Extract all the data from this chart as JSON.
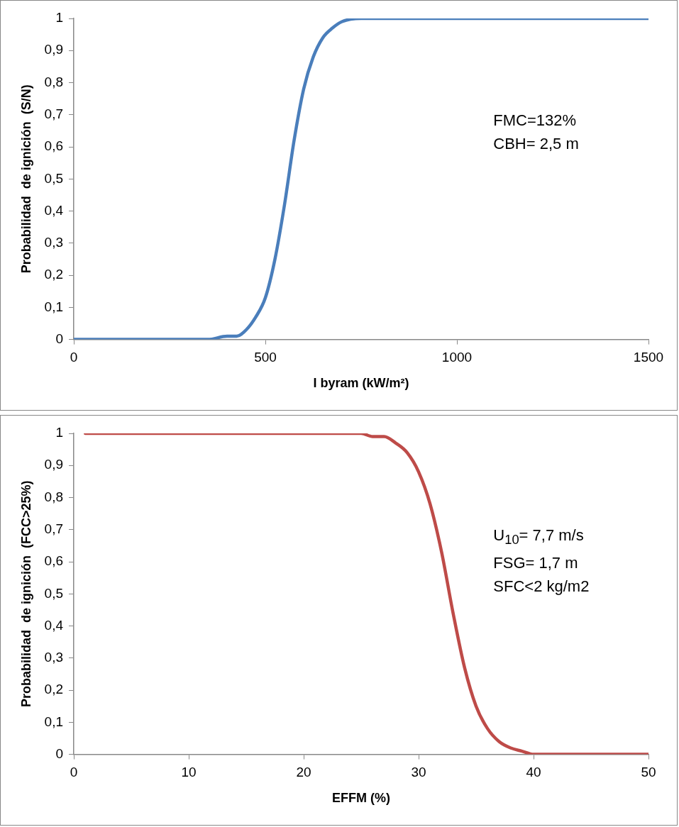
{
  "chart_data": [
    {
      "type": "line",
      "xlabel": "I byram (kW/m²)",
      "ylabel": "Probabilidad  de ignición  (S/N)",
      "annotations": [
        "FMC=132%",
        "CBH= 2,5 m"
      ],
      "x": [
        0,
        100,
        200,
        250,
        300,
        350,
        400,
        425,
        450,
        475,
        500,
        525,
        550,
        575,
        600,
        625,
        650,
        675,
        700,
        750,
        800,
        900,
        1000,
        1200,
        1500
      ],
      "series": [
        {
          "color": "#4a7ebb",
          "values": [
            0,
            0,
            0,
            0,
            0,
            0,
            0.01,
            0.01,
            0.03,
            0.07,
            0.13,
            0.25,
            0.42,
            0.62,
            0.78,
            0.88,
            0.94,
            0.97,
            0.99,
            1,
            1,
            1,
            1,
            1,
            1
          ]
        }
      ],
      "xlim": [
        0,
        1500
      ],
      "xticks": [
        0,
        500,
        1000,
        1500
      ],
      "ylim": [
        0,
        1
      ],
      "yticks": [
        {
          "value": 0,
          "label": "0"
        },
        {
          "value": 0.1,
          "label": "0,1"
        },
        {
          "value": 0.2,
          "label": "0,2"
        },
        {
          "value": 0.3,
          "label": "0,3"
        },
        {
          "value": 0.4,
          "label": "0,4"
        },
        {
          "value": 0.5,
          "label": "0,5"
        },
        {
          "value": 0.6,
          "label": "0,6"
        },
        {
          "value": 0.7,
          "label": "0,7"
        },
        {
          "value": 0.8,
          "label": "0,8"
        },
        {
          "value": 0.9,
          "label": "0,9"
        },
        {
          "value": 1,
          "label": "1"
        }
      ],
      "grid": false,
      "legend": false,
      "marker": "none",
      "line_style": "solid"
    },
    {
      "type": "line",
      "xlabel": "EFFM (%)",
      "ylabel": "Probabilidad  de ignición  (FCC>25%)",
      "annotations": [
        "U$_{10}$= 7,7 m/s",
        "FSG= 1,7 m",
        "SFC<2 kg/m2"
      ],
      "x": [
        1,
        5,
        10,
        15,
        20,
        24,
        25,
        26,
        27,
        28,
        29,
        30,
        31,
        32,
        33,
        34,
        35,
        36,
        37,
        38,
        39,
        40,
        42,
        45,
        50
      ],
      "series": [
        {
          "color": "#be4b48",
          "values": [
            1,
            1,
            1,
            1,
            1,
            1,
            1,
            0.99,
            0.99,
            0.97,
            0.94,
            0.88,
            0.78,
            0.63,
            0.44,
            0.27,
            0.15,
            0.08,
            0.04,
            0.02,
            0.01,
            0,
            0,
            0,
            0
          ]
        }
      ],
      "xlim": [
        0,
        50
      ],
      "xticks": [
        0,
        10,
        20,
        30,
        40,
        50
      ],
      "ylim": [
        0,
        1
      ],
      "yticks": [
        {
          "value": 0,
          "label": "0"
        },
        {
          "value": 0.1,
          "label": "0,1"
        },
        {
          "value": 0.2,
          "label": "0,2"
        },
        {
          "value": 0.3,
          "label": "0,3"
        },
        {
          "value": 0.4,
          "label": "0,4"
        },
        {
          "value": 0.5,
          "label": "0,5"
        },
        {
          "value": 0.6,
          "label": "0,6"
        },
        {
          "value": 0.7,
          "label": "0,7"
        },
        {
          "value": 0.8,
          "label": "0,8"
        },
        {
          "value": 0.9,
          "label": "0,9"
        },
        {
          "value": 1,
          "label": "1"
        }
      ],
      "grid": false,
      "legend": false,
      "marker": "none",
      "line_style": "solid"
    }
  ]
}
